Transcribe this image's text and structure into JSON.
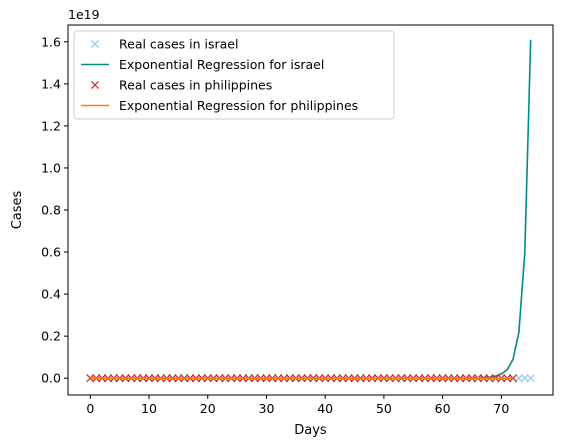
{
  "chart_data": {
    "type": "line",
    "title": "",
    "xlabel": "Days",
    "ylabel": "Cases",
    "offset_label": "1e19",
    "xlim": [
      -3.8,
      78.8
    ],
    "ylim": [
      -0.08,
      1.68
    ],
    "y_scale_factor": 1e+19,
    "xticks": [
      0,
      10,
      20,
      30,
      40,
      50,
      60,
      70
    ],
    "xtick_labels": [
      "0",
      "10",
      "20",
      "30",
      "40",
      "50",
      "60",
      "70"
    ],
    "yticks": [
      0.0,
      0.2,
      0.4,
      0.6,
      0.8,
      1.0,
      1.2,
      1.4,
      1.6
    ],
    "ytick_labels": [
      "0.0",
      "0.2",
      "0.4",
      "0.6",
      "0.8",
      "1.0",
      "1.2",
      "1.4",
      "1.6"
    ],
    "grid": false,
    "legend_position": "top-left",
    "legend": [
      {
        "label": "Real cases in israel",
        "marker": "x",
        "color": "#87ceeb"
      },
      {
        "label": "Exponential Regression for israel",
        "marker": "line",
        "color": "#008b8b"
      },
      {
        "label": "Real cases in philippines",
        "marker": "x",
        "color": "#d62728"
      },
      {
        "label": "Exponential Regression for philippines",
        "marker": "line",
        "color": "#ff7f0e"
      }
    ],
    "series": [
      {
        "name": "Real cases in israel",
        "kind": "scatter",
        "marker": "x",
        "color": "#87ceeb",
        "x_range": [
          0,
          75
        ],
        "y_constant": 0
      },
      {
        "name": "Exponential Regression for israel",
        "kind": "line",
        "color": "#008b8b",
        "x": [
          0,
          10,
          20,
          30,
          40,
          50,
          60,
          65,
          68,
          69,
          70,
          71,
          72,
          73,
          74,
          75
        ],
        "y": [
          0,
          0,
          0,
          0,
          0,
          0,
          0,
          0.001,
          0.005,
          0.01,
          0.02,
          0.04,
          0.09,
          0.22,
          0.6,
          1.61
        ]
      },
      {
        "name": "Real cases in philippines",
        "kind": "scatter",
        "marker": "x",
        "color": "#d62728",
        "x_range": [
          0,
          72
        ],
        "y_constant": 0
      },
      {
        "name": "Exponential Regression for philippines",
        "kind": "line",
        "color": "#ff7f0e",
        "x": [
          0,
          72
        ],
        "y": [
          0,
          0
        ]
      }
    ]
  }
}
